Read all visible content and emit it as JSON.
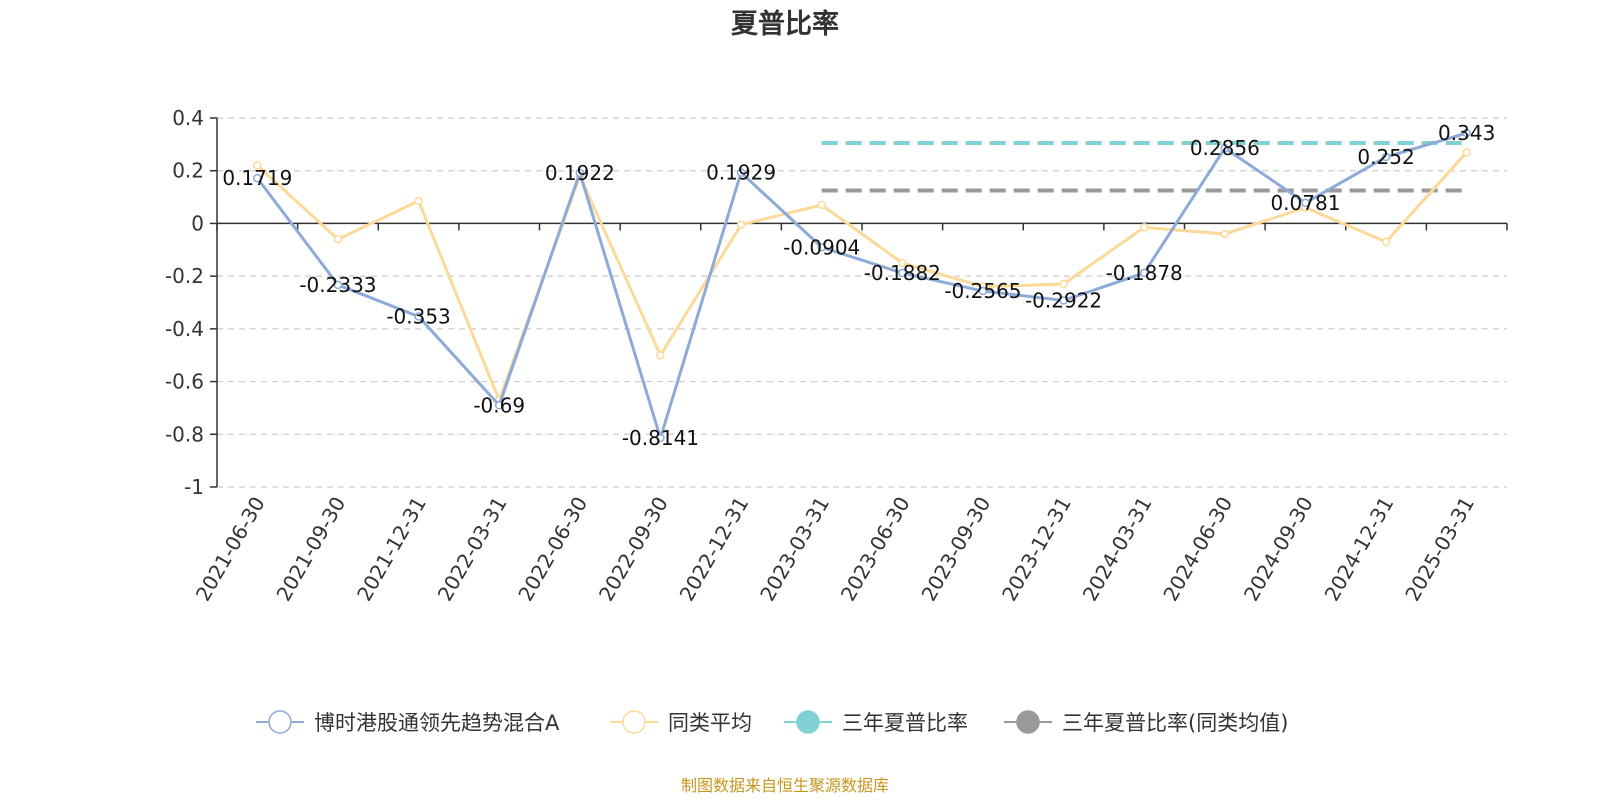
{
  "chart_data": {
    "type": "line",
    "title": "夏普比率",
    "categories": [
      "2021-06-30",
      "2021-09-30",
      "2021-12-31",
      "2022-03-31",
      "2022-06-30",
      "2022-09-30",
      "2022-12-31",
      "2023-03-31",
      "2023-06-30",
      "2023-09-30",
      "2023-12-31",
      "2024-03-31",
      "2024-06-30",
      "2024-09-30",
      "2024-12-31",
      "2025-03-31"
    ],
    "ylim": [
      -1,
      0.4
    ],
    "yticks": [
      0.4,
      0.2,
      0,
      -0.2,
      -0.4,
      -0.6,
      -0.8,
      -1
    ],
    "ytick_labels": [
      "0.4",
      "0.2",
      "0",
      "-0.2",
      "-0.4",
      "-0.6",
      "-0.8",
      "-1"
    ],
    "grid": true,
    "legend_position": "bottom",
    "series": [
      {
        "name": "博时港股通领先趋势混合A",
        "color": "#8eaad8",
        "values": [
          0.1719,
          -0.2333,
          -0.353,
          -0.69,
          0.1922,
          -0.8141,
          0.1929,
          -0.0904,
          -0.1882,
          -0.2565,
          -0.2922,
          -0.1878,
          0.2856,
          0.0781,
          0.252,
          0.343
        ],
        "labels": [
          "0.1719",
          "-0.2333",
          "-0.353",
          "-0.69",
          "0.1922",
          "-0.8141",
          "0.1929",
          "-0.0904",
          "-0.1882",
          "-0.2565",
          "-0.2922",
          "-0.1878",
          "0.2856",
          "0.0781",
          "0.252",
          "0.343"
        ]
      },
      {
        "name": "同类平均",
        "color": "#fcd998",
        "values": [
          0.22,
          -0.06,
          0.085,
          -0.67,
          0.18,
          -0.5,
          -0.005,
          0.07,
          -0.15,
          -0.24,
          -0.23,
          -0.015,
          -0.04,
          0.06,
          -0.07,
          0.27
        ]
      }
    ],
    "reference_lines": [
      {
        "name": "三年夏普比率",
        "color": "#7fd1d4",
        "value": 0.305,
        "from_category": "2023-03-31",
        "to_category": "2025-03-31"
      },
      {
        "name": "三年夏普比率(同类均值)",
        "color": "#999999",
        "value": 0.125,
        "from_category": "2023-03-31",
        "to_category": "2025-03-31"
      }
    ],
    "source": "制图数据来自恒生聚源数据库"
  }
}
